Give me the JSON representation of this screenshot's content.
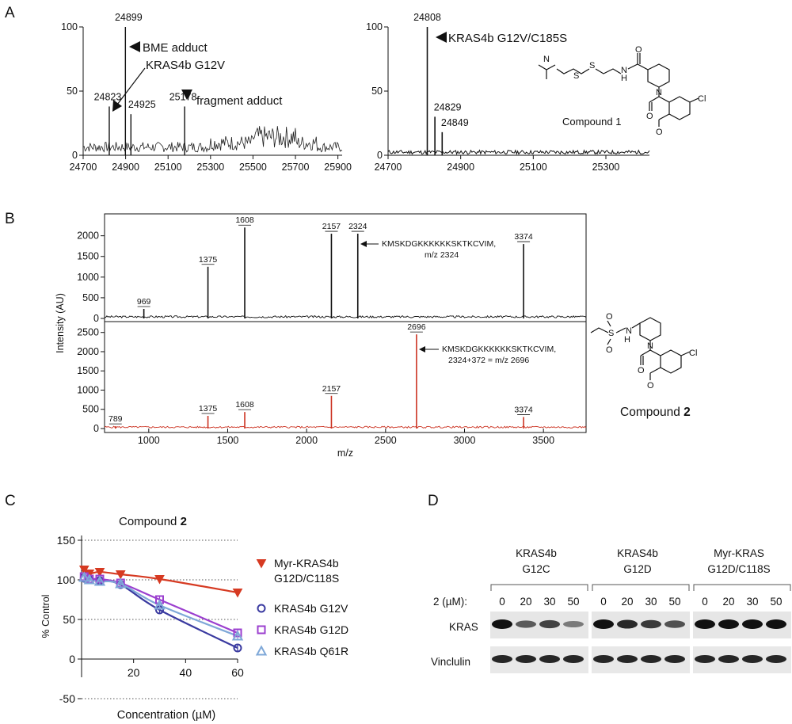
{
  "panels": {
    "a": "A",
    "b": "B",
    "c": "C",
    "d": "D"
  },
  "chart_data": [
    {
      "panel": "A-left",
      "type": "line",
      "x_ticks": [
        "24700",
        "24900",
        "25100",
        "25300",
        "25500",
        "25700",
        "25900"
      ],
      "y_ticks": [
        "0",
        "50",
        "100"
      ],
      "xlim": [
        24700,
        25920
      ],
      "ylim": [
        0,
        100
      ],
      "peaks": [
        {
          "x": 24823,
          "y": 38,
          "label": "24823"
        },
        {
          "x": 24899,
          "y": 100,
          "label": "24899"
        },
        {
          "x": 24925,
          "y": 32,
          "label": "24925"
        },
        {
          "x": 25178,
          "y": 38,
          "label": "25178"
        }
      ],
      "annotations": [
        "BME adduct",
        "KRAS4b G12V",
        "fragment adduct"
      ]
    },
    {
      "panel": "A-right",
      "type": "line",
      "x_ticks": [
        "24700",
        "24900",
        "25100",
        "25300"
      ],
      "y_ticks": [
        "0",
        "50",
        "100"
      ],
      "xlim": [
        24700,
        25420
      ],
      "ylim": [
        0,
        100
      ],
      "peaks": [
        {
          "x": 24808,
          "y": 100,
          "label": "24808"
        },
        {
          "x": 24829,
          "y": 30,
          "label": "24829"
        },
        {
          "x": 24849,
          "y": 18,
          "label": "24849"
        }
      ],
      "annotations": [
        "KRAS4b G12V/C185S",
        "Compound  1"
      ]
    },
    {
      "panel": "B-top",
      "type": "line",
      "ylabel": "Intensity (AU)",
      "y_ticks": [
        "0",
        "500",
        "1000",
        "1500",
        "2000"
      ],
      "ylim": [
        0,
        2300
      ],
      "xlim": [
        720,
        3770
      ],
      "peaks": [
        {
          "x": 969,
          "y": 230,
          "label": "969"
        },
        {
          "x": 1375,
          "y": 1250,
          "label": "1375"
        },
        {
          "x": 1608,
          "y": 2200,
          "label": "1608"
        },
        {
          "x": 2157,
          "y": 2050,
          "label": "2157"
        },
        {
          "x": 2324,
          "y": 2050,
          "label": "2324"
        },
        {
          "x": 3374,
          "y": 1800,
          "label": "3374"
        }
      ],
      "annotation": [
        "KMSKDGKKKKKKSKTKCVIM,",
        "m/z 2324"
      ]
    },
    {
      "panel": "B-bottom",
      "type": "line",
      "xlabel": "m/z",
      "x_ticks": [
        "1000",
        "1500",
        "2000",
        "2500",
        "3000",
        "3500"
      ],
      "y_ticks": [
        "0",
        "500",
        "1000",
        "1500",
        "2000",
        "2500"
      ],
      "ylim": [
        0,
        2700
      ],
      "xlim": [
        720,
        3770
      ],
      "peaks": [
        {
          "x": 789,
          "y": 60,
          "label": "789"
        },
        {
          "x": 1375,
          "y": 330,
          "label": "1375"
        },
        {
          "x": 1608,
          "y": 430,
          "label": "1608"
        },
        {
          "x": 2157,
          "y": 850,
          "label": "2157"
        },
        {
          "x": 2696,
          "y": 2450,
          "label": "2696"
        },
        {
          "x": 3374,
          "y": 300,
          "label": "3374"
        }
      ],
      "annotation": [
        "KMSKDGKKKKKKSKTKCVIM,",
        "2324+372 = m/z 2696"
      ],
      "compound_label": "Compound",
      "compound_num": "2",
      "series_color": "#cc3322"
    },
    {
      "panel": "C",
      "type": "scatter",
      "title": "Compound ",
      "title_num": "2",
      "xlabel": "Concentration (µM)",
      "ylabel": "%  Control",
      "x_ticks": [
        "20",
        "40",
        "60"
      ],
      "y_ticks": [
        "-50",
        "0",
        "50",
        "100",
        "150"
      ],
      "xlim": [
        0,
        60
      ],
      "ylim": [
        -50,
        150
      ],
      "x": [
        1,
        3,
        7,
        15,
        30,
        60
      ],
      "series": [
        {
          "name": "Myr-KRAS4b",
          "name2": "G12D/C118S",
          "color": "#d63a22",
          "marker": "triangle-down",
          "values": [
            113,
            108,
            110,
            107,
            101,
            84
          ]
        },
        {
          "name": "KRAS4b G12V",
          "name2": "",
          "color": "#3a3aa0",
          "marker": "circle",
          "values": [
            102,
            100,
            99,
            94,
            62,
            14
          ]
        },
        {
          "name": "KRAS4b G12D",
          "name2": "",
          "color": "#9b3fcf",
          "marker": "square",
          "values": [
            104,
            101,
            101,
            96,
            75,
            33
          ]
        },
        {
          "name": "KRAS4b Q61R",
          "name2": "",
          "color": "#7fa8d8",
          "marker": "triangle-up",
          "values": [
            103,
            100,
            98,
            95,
            68,
            29
          ]
        }
      ]
    }
  ],
  "blot": {
    "groups": [
      {
        "line1": "KRAS4b",
        "line2": "G12C"
      },
      {
        "line1": "KRAS4b",
        "line2": "G12D"
      },
      {
        "line1": "Myr-KRAS",
        "line2": "G12D/C118S"
      }
    ],
    "dose_label": "2 (µM):",
    "doses": [
      "0",
      "20",
      "30",
      "50"
    ],
    "rows": [
      "KRAS",
      "Vinclulin"
    ],
    "kras_intensity": [
      [
        1.0,
        0.55,
        0.7,
        0.35
      ],
      [
        1.0,
        0.85,
        0.75,
        0.6
      ],
      [
        1.0,
        1.0,
        1.0,
        1.0
      ]
    ],
    "vinc_intensity": [
      [
        1,
        1,
        1,
        1
      ],
      [
        1,
        1,
        1,
        1
      ],
      [
        1,
        1,
        1,
        1
      ]
    ]
  }
}
